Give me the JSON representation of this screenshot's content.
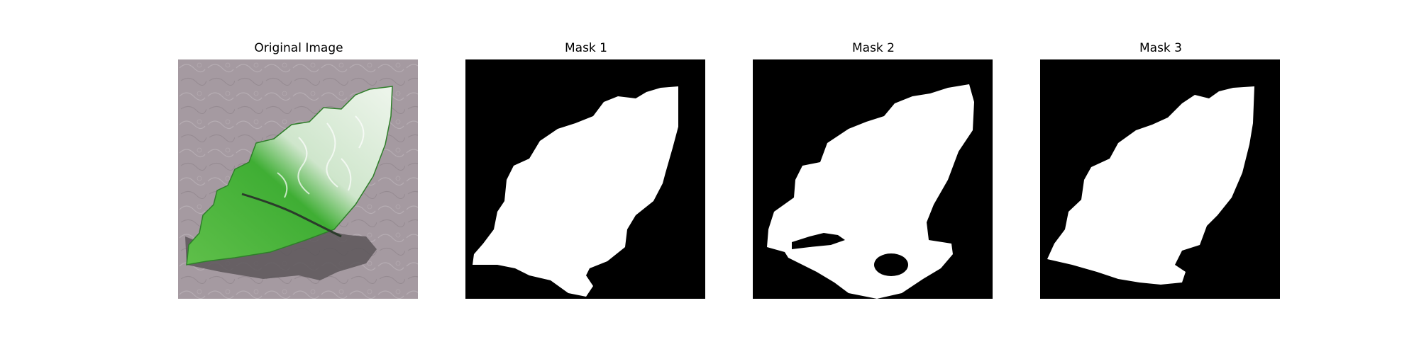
{
  "panels": [
    {
      "title": "Original Image"
    },
    {
      "title": "Mask 1"
    },
    {
      "title": "Mask 2"
    },
    {
      "title": "Mask 3"
    }
  ],
  "colors": {
    "background": "#ffffff",
    "mask_background": "#000000",
    "mask_foreground": "#ffffff",
    "leaf_green": "#4cbb3e",
    "leaf_light": "#e3efe1",
    "surface": "#a59aa1",
    "shadow": "#5c5659"
  }
}
